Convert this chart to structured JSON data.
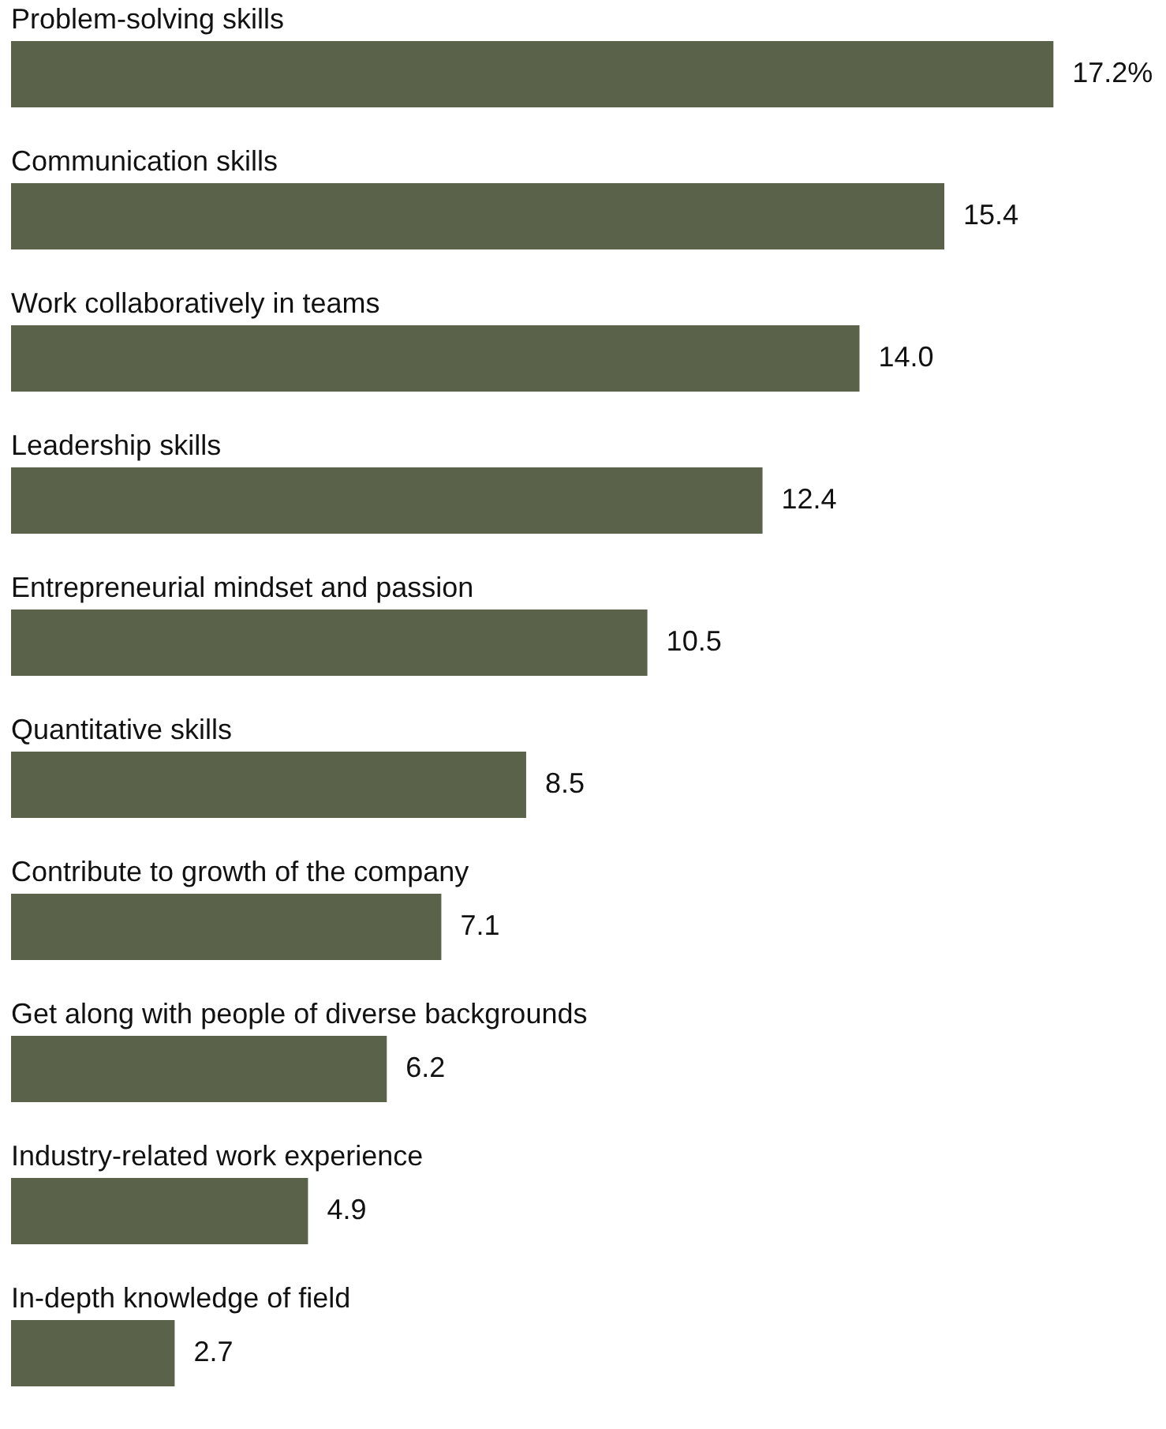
{
  "chart_data": {
    "type": "bar",
    "orientation": "horizontal",
    "categories": [
      "Problem-solving skills",
      "Communication skills",
      "Work collaboratively in teams",
      "Leadership skills",
      "Entrepreneurial mindset and passion",
      "Quantitative skills",
      "Contribute to growth of the company",
      "Get along with people of diverse backgrounds",
      "Industry-related work experience",
      "In-depth knowledge of field"
    ],
    "values": [
      17.2,
      15.4,
      14.0,
      12.4,
      10.5,
      8.5,
      7.1,
      6.2,
      4.9,
      2.7
    ],
    "value_labels": [
      "17.2%",
      "15.4",
      "14.0",
      "12.4",
      "10.5",
      "8.5",
      "7.1",
      "6.2",
      "4.9",
      "2.7"
    ],
    "color": "#5a6349"
  }
}
